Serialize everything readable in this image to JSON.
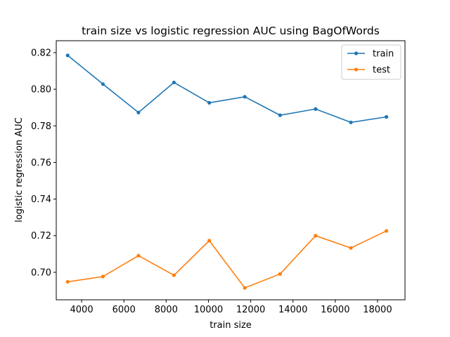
{
  "chart_data": {
    "type": "line",
    "title": "train size vs logistic regression AUC using BagOfWords",
    "xlabel": "train size",
    "ylabel": "logistic regression AUC",
    "xlim": [
      2800,
      19300
    ],
    "ylim": [
      0.685,
      0.8265
    ],
    "xticks": [
      4000,
      6000,
      8000,
      10000,
      12000,
      14000,
      16000,
      18000
    ],
    "yticks": [
      0.7,
      0.72,
      0.74,
      0.76,
      0.78,
      0.8,
      0.82
    ],
    "ytick_labels": [
      "0.70",
      "0.72",
      "0.74",
      "0.76",
      "0.78",
      "0.80",
      "0.82"
    ],
    "grid": false,
    "legend_position": "top-right",
    "x": [
      3340,
      5010,
      6690,
      8370,
      10040,
      11720,
      13390,
      15070,
      16740,
      18420
    ],
    "series": [
      {
        "name": "train",
        "color": "#1f77b4",
        "values": [
          0.8185,
          0.8028,
          0.7873,
          0.8037,
          0.7926,
          0.7959,
          0.7858,
          0.7892,
          0.7819,
          0.7849
        ]
      },
      {
        "name": "test",
        "color": "#ff7f0e",
        "values": [
          0.6948,
          0.6977,
          0.7091,
          0.6984,
          0.7173,
          0.6915,
          0.6991,
          0.72,
          0.7133,
          0.7226
        ]
      }
    ]
  }
}
